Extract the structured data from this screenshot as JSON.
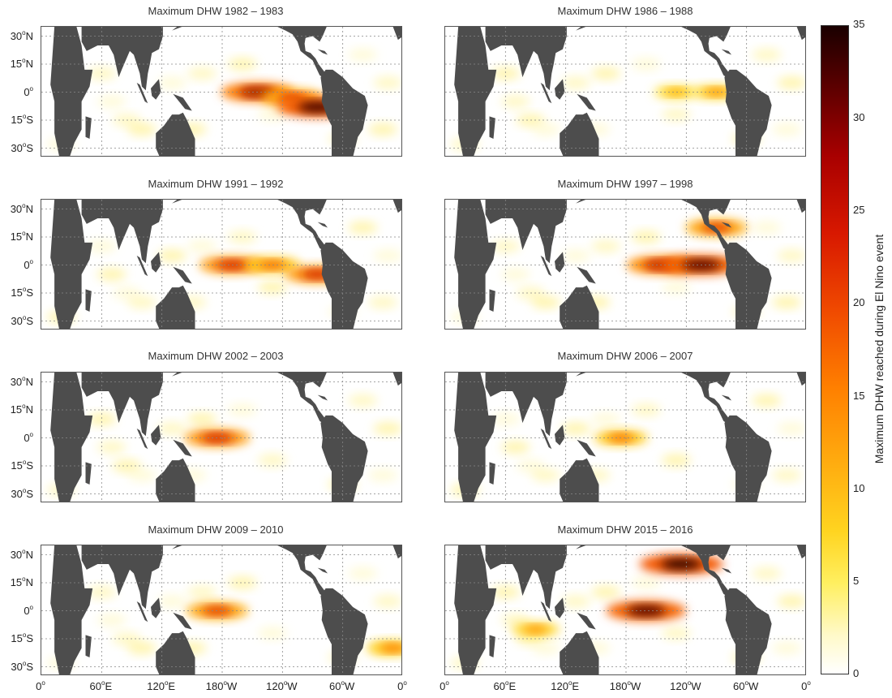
{
  "panels": [
    {
      "title": "Maximum DHW 1982 – 1983",
      "hotspots": [
        {
          "lon": 215,
          "lat": 0,
          "value": 28
        },
        {
          "lon": 250,
          "lat": -3,
          "value": 22
        },
        {
          "lon": 275,
          "lat": -8,
          "value": 33
        }
      ]
    },
    {
      "title": "Maximum DHW 1986 – 1988",
      "hotspots": [
        {
          "lon": 230,
          "lat": 0,
          "value": 12
        },
        {
          "lon": 270,
          "lat": 0,
          "value": 14
        }
      ]
    },
    {
      "title": "Maximum DHW 1991 – 1992",
      "hotspots": [
        {
          "lon": 190,
          "lat": 0,
          "value": 24
        },
        {
          "lon": 230,
          "lat": 0,
          "value": 18
        },
        {
          "lon": 275,
          "lat": -5,
          "value": 24
        }
      ]
    },
    {
      "title": "Maximum DHW 1997 – 1998",
      "hotspots": [
        {
          "lon": 215,
          "lat": 0,
          "value": 26
        },
        {
          "lon": 255,
          "lat": 0,
          "value": 32
        },
        {
          "lon": 270,
          "lat": 20,
          "value": 22
        }
      ]
    },
    {
      "title": "Maximum DHW 2002 – 2003",
      "hotspots": [
        {
          "lon": 175,
          "lat": 0,
          "value": 24
        }
      ]
    },
    {
      "title": "Maximum DHW 2006 – 2007",
      "hotspots": [
        {
          "lon": 175,
          "lat": 0,
          "value": 17
        }
      ]
    },
    {
      "title": "Maximum DHW 2009 – 2010",
      "hotspots": [
        {
          "lon": 175,
          "lat": 0,
          "value": 22
        },
        {
          "lon": 350,
          "lat": -20,
          "value": 16
        }
      ]
    },
    {
      "title": "Maximum DHW 2015 – 2016",
      "hotspots": [
        {
          "lon": 200,
          "lat": 0,
          "value": 32
        },
        {
          "lon": 235,
          "lat": 25,
          "value": 34
        },
        {
          "lon": 90,
          "lat": -10,
          "value": 14
        }
      ]
    }
  ],
  "y_tick_labels": [
    {
      "value": "30",
      "sup": "o",
      "hemi": "N"
    },
    {
      "value": "15",
      "sup": "o",
      "hemi": "N"
    },
    {
      "value": "0",
      "sup": "o",
      "hemi": ""
    },
    {
      "value": "15",
      "sup": "o",
      "hemi": "S"
    },
    {
      "value": "30",
      "sup": "o",
      "hemi": "S"
    }
  ],
  "x_tick_labels": [
    {
      "value": "0",
      "sup": "o",
      "hemi": ""
    },
    {
      "value": "60",
      "sup": "o",
      "hemi": "E"
    },
    {
      "value": "120",
      "sup": "o",
      "hemi": "E"
    },
    {
      "value": "180",
      "sup": "o",
      "hemi": "W"
    },
    {
      "value": "120",
      "sup": "o",
      "hemi": "W"
    },
    {
      "value": "60",
      "sup": "o",
      "hemi": "W"
    },
    {
      "value": "0",
      "sup": "o",
      "hemi": ""
    }
  ],
  "colorbar": {
    "title": "Maximum DHW reached during El Nino event",
    "ticks": [
      "35",
      "30",
      "25",
      "20",
      "15",
      "10",
      "5",
      "0"
    ],
    "range": [
      0,
      35
    ]
  },
  "colors": {
    "land": "#4d4d4d",
    "ocean": "#ffffff",
    "grid": "#888888"
  }
}
